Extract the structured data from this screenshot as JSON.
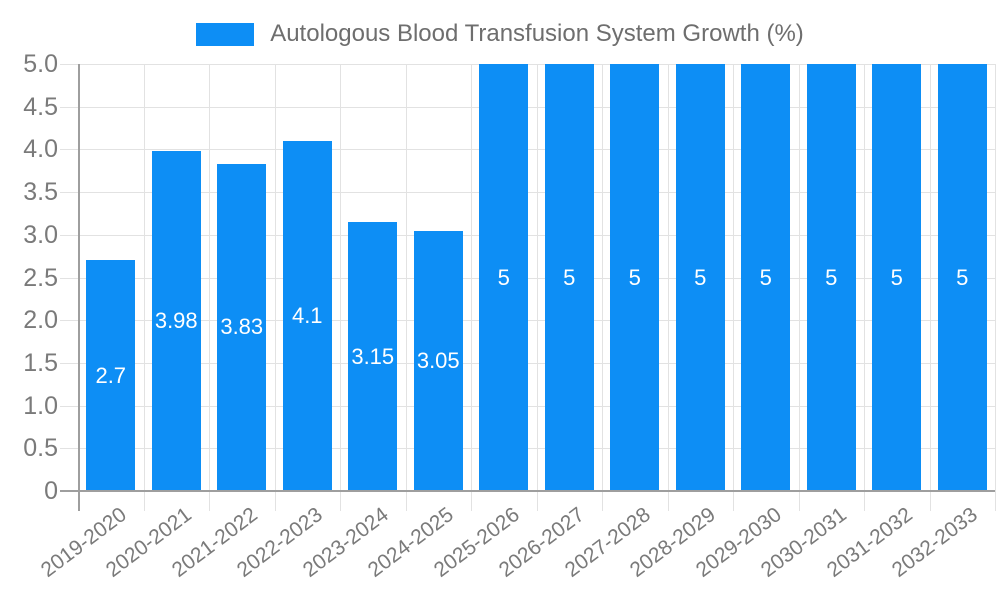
{
  "legend": {
    "label": "Autologous Blood Transfusion System Growth (%)"
  },
  "chart_data": {
    "type": "bar",
    "title": "Autologous Blood Transfusion System Growth (%)",
    "xlabel": "",
    "ylabel": "",
    "categories": [
      "2019-2020",
      "2020-2021",
      "2021-2022",
      "2022-2023",
      "2023-2024",
      "2024-2025",
      "2025-2026",
      "2026-2027",
      "2027-2028",
      "2028-2029",
      "2029-2030",
      "2030-2031",
      "2031-2032",
      "2032-2033"
    ],
    "values": [
      2.7,
      3.98,
      3.83,
      4.1,
      3.15,
      3.05,
      5,
      5,
      5,
      5,
      5,
      5,
      5,
      5
    ],
    "value_labels": [
      "2.7",
      "3.98",
      "3.83",
      "4.1",
      "3.15",
      "3.05",
      "5",
      "5",
      "5",
      "5",
      "5",
      "5",
      "5",
      "5"
    ],
    "ylim": [
      0,
      5
    ],
    "ytick_step": 0.5,
    "ytick_labels_top_to_bottom": [
      "5.0",
      "4.5",
      "4.0",
      "3.5",
      "3.0",
      "2.5",
      "2.0",
      "1.5",
      "1.0",
      "0.5",
      "0"
    ],
    "grid": true,
    "legend_position": "top-center",
    "colors": {
      "bar": "#0d8ef5",
      "grid": "#e2e2e2",
      "axis": "#9e9e9e",
      "tick_label": "#7a7a7a",
      "legend_text": "#6e6e6e",
      "bar_label": "#ffffff"
    }
  }
}
